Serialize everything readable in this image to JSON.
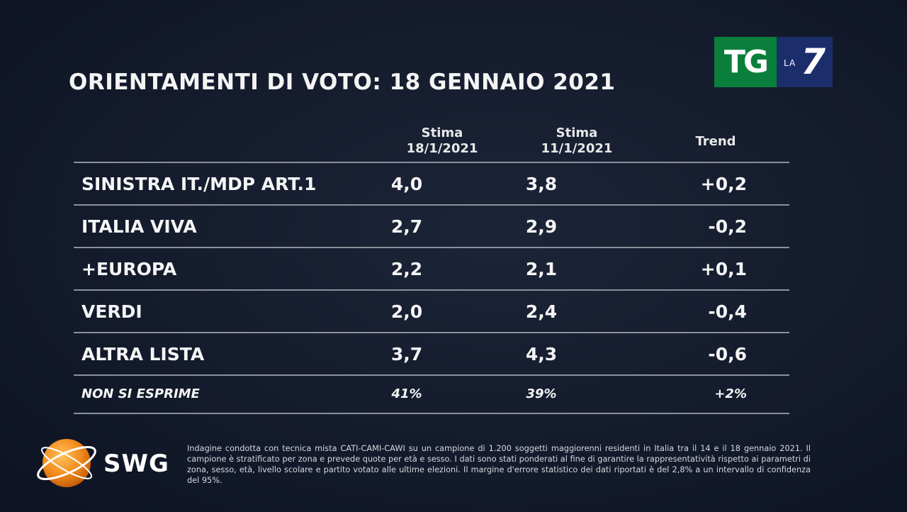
{
  "title": "ORIENTAMENTI DI VOTO: 18 GENNAIO 2021",
  "logo": {
    "tg": "TG",
    "la": "LA",
    "seven": "7"
  },
  "columns": {
    "stima1_line1": "Stima",
    "stima1_line2": "18/1/2021",
    "stima2_line1": "Stima",
    "stima2_line2": "11/1/2021",
    "trend": "Trend"
  },
  "rows": [
    {
      "party": "SINISTRA IT./MDP ART.1",
      "v1": "4,0",
      "v2": "3,8",
      "trend": "+0,2"
    },
    {
      "party": "ITALIA VIVA",
      "v1": "2,7",
      "v2": "2,9",
      "trend": "-0,2"
    },
    {
      "party": "+EUROPA",
      "v1": "2,2",
      "v2": "2,1",
      "trend": "+0,1"
    },
    {
      "party": "VERDI",
      "v1": "2,0",
      "v2": "2,4",
      "trend": "-0,4"
    },
    {
      "party": "ALTRA LISTA",
      "v1": "3,7",
      "v2": "4,3",
      "trend": "-0,6"
    },
    {
      "party": "NON SI ESPRIME",
      "v1": "41%",
      "v2": "39%",
      "trend": "+2%"
    }
  ],
  "swg": {
    "name": "SWG"
  },
  "footnote": "Indagine condotta con tecnica mista CATI-CAMI-CAWI su un campione di 1.200 soggetti maggiorenni residenti in Italia tra il 14 e il 18 gennaio 2021. Il campione è stratificato per zona e prevede quote per età e sesso. I dati sono stati ponderati al fine di garantire la rappresentatività rispetto ai parametri di zona, sesso, età, livello scolare e partito votato alle ultime elezioni. Il margine d'errore statistico dei dati riportati è del 2,8% a un intervallo di confidenza del 95%.",
  "colors": {
    "background": "#141b2c",
    "tg_green": "#0a7f3c",
    "la7_blue": "#1b2d6b",
    "swg_orange": "#f28c1e",
    "rule": "#8b909c"
  }
}
